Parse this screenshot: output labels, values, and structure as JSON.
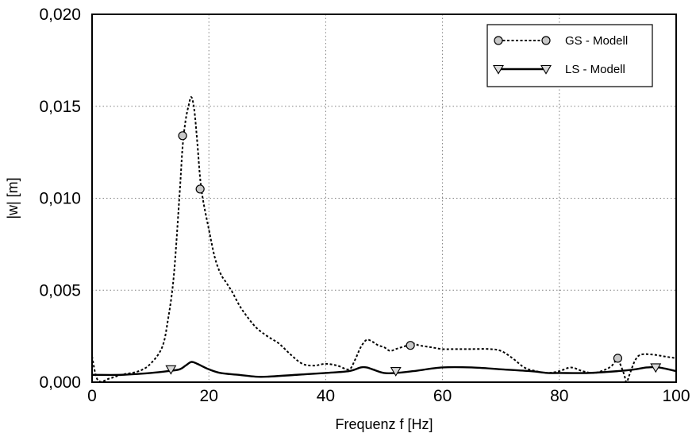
{
  "chart_data": {
    "type": "line",
    "title": "",
    "xlabel": "Frequenz f [Hz]",
    "ylabel": "|w| [m]",
    "xlim": [
      0,
      100
    ],
    "ylim": [
      0,
      0.02
    ],
    "grid": true,
    "legend_position": "top-right",
    "x_ticks": [
      {
        "value": 0,
        "label": "0"
      },
      {
        "value": 20,
        "label": "20"
      },
      {
        "value": 40,
        "label": "40"
      },
      {
        "value": 60,
        "label": "60"
      },
      {
        "value": 80,
        "label": "80"
      },
      {
        "value": 100,
        "label": "100"
      }
    ],
    "y_ticks": [
      {
        "value": 0,
        "label": "0,000"
      },
      {
        "value": 0.005,
        "label": "0,005"
      },
      {
        "value": 0.01,
        "label": "0,010"
      },
      {
        "value": 0.015,
        "label": "0,015"
      },
      {
        "value": 0.02,
        "label": "0,020"
      }
    ],
    "series": [
      {
        "name": "GS - Modell",
        "line_style": "dotted",
        "marker": "circle",
        "color": "#000000",
        "marker_fill": "#c8c8c8",
        "x": [
          0,
          1,
          3,
          5,
          8,
          10,
          12,
          13,
          14,
          15,
          15.5,
          16,
          16.5,
          17,
          17.5,
          18,
          18.5,
          19,
          20,
          21,
          22,
          23,
          24,
          25,
          26,
          28,
          30,
          32,
          34,
          36,
          38,
          40,
          42,
          44,
          45,
          46,
          47,
          48,
          49,
          50,
          51,
          52,
          53,
          54,
          55,
          56,
          58,
          60,
          62,
          65,
          68,
          70,
          72,
          74,
          76,
          78,
          80,
          82,
          84,
          86,
          88,
          89,
          90,
          91,
          91.5,
          92,
          93,
          94,
          96,
          98,
          100
        ],
        "y": [
          0.0014,
          0.0001,
          0.0002,
          0.0004,
          0.0006,
          0.001,
          0.0019,
          0.0034,
          0.0058,
          0.0103,
          0.0128,
          0.0142,
          0.015,
          0.0155,
          0.0148,
          0.0131,
          0.0111,
          0.0099,
          0.0083,
          0.0068,
          0.0059,
          0.0054,
          0.0049,
          0.0043,
          0.0038,
          0.003,
          0.0025,
          0.0021,
          0.0015,
          0.001,
          0.0009,
          0.001,
          0.0009,
          0.0007,
          0.0012,
          0.0019,
          0.0023,
          0.0022,
          0.002,
          0.0019,
          0.0017,
          0.0018,
          0.0019,
          0.002,
          0.0021,
          0.002,
          0.0019,
          0.0018,
          0.0018,
          0.0018,
          0.0018,
          0.0017,
          0.0013,
          0.0008,
          0.0006,
          0.0005,
          0.0006,
          0.0008,
          0.0006,
          0.0005,
          0.0007,
          0.0009,
          0.0012,
          0.0005,
          0.0,
          0.0004,
          0.0012,
          0.0015,
          0.0015,
          0.0014,
          0.0013
        ],
        "marker_points": [
          [
            15.5,
            0.0134
          ],
          [
            18.5,
            0.0105
          ],
          [
            54.5,
            0.002
          ],
          [
            90,
            0.0013
          ]
        ]
      },
      {
        "name": "LS - Modell",
        "line_style": "solid",
        "marker": "triangle-down",
        "color": "#000000",
        "marker_fill": "#d8d8d8",
        "x": [
          0,
          5,
          10,
          13,
          15,
          16,
          17,
          18,
          20,
          22,
          25,
          28,
          30,
          35,
          40,
          44,
          46,
          47,
          48,
          50,
          52,
          55,
          60,
          65,
          70,
          75,
          78,
          80,
          85,
          90,
          93,
          95,
          97,
          100
        ],
        "y": [
          0.0004,
          0.0004,
          0.0005,
          0.0006,
          0.0007,
          0.0009,
          0.0011,
          0.001,
          0.0007,
          0.0005,
          0.0004,
          0.0003,
          0.0003,
          0.0004,
          0.0005,
          0.0006,
          0.0008,
          0.0008,
          0.0007,
          0.0005,
          0.0005,
          0.0006,
          0.0008,
          0.0008,
          0.0007,
          0.0006,
          0.0005,
          0.0005,
          0.0005,
          0.0006,
          0.0007,
          0.0008,
          0.0008,
          0.0006
        ],
        "marker_points": [
          [
            13.5,
            0.0007
          ],
          [
            52,
            0.0006
          ],
          [
            96.5,
            0.0008
          ]
        ]
      }
    ]
  }
}
